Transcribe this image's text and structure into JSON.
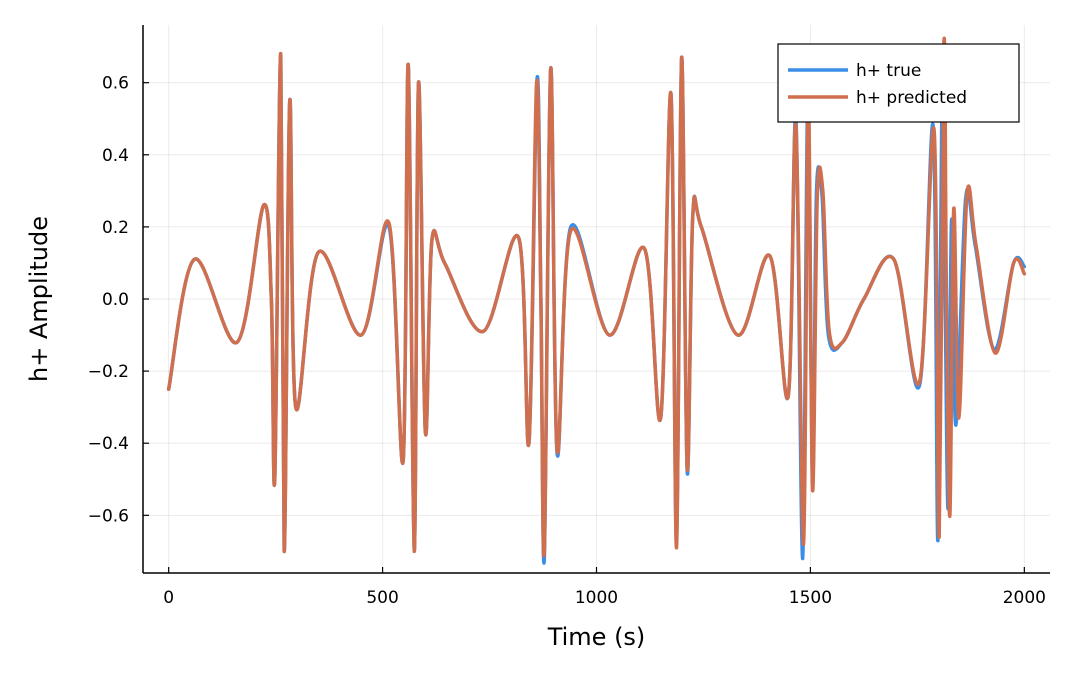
{
  "chart_data": {
    "type": "line",
    "title": "",
    "xlabel": "Time (s)",
    "ylabel": "h+ Amplitude",
    "xlim": [
      -60,
      2060
    ],
    "ylim": [
      -0.76,
      0.76
    ],
    "xticks": [
      0,
      500,
      1000,
      1500,
      2000
    ],
    "xtick_labels": [
      "0",
      "500",
      "1000",
      "1500",
      "2000"
    ],
    "yticks": [
      -0.6,
      -0.4,
      -0.2,
      0.0,
      0.2,
      0.4,
      0.6
    ],
    "ytick_labels": [
      "−0.6",
      "−0.4",
      "−0.2",
      "0.0",
      "0.2",
      "0.4",
      "0.6"
    ],
    "grid": true,
    "legend_position": "top-right",
    "series": [
      {
        "name": "h+ true",
        "color": "#3b8ee8",
        "x": [
          0,
          60,
          160,
          222,
          240,
          248,
          262,
          270,
          283,
          297,
          350,
          450,
          515,
          548,
          560,
          574,
          584,
          600,
          615,
          645,
          735,
          818,
          842,
          861,
          870,
          878,
          893,
          908,
          940,
          1030,
          1112,
          1150,
          1174,
          1187,
          1199,
          1212,
          1225,
          1245,
          1330,
          1405,
          1448,
          1466,
          1482,
          1494,
          1505,
          1514,
          1527,
          1542,
          1575,
          1625,
          1695,
          1755,
          1787,
          1798,
          1808,
          1815,
          1822,
          1830,
          1840,
          1863,
          1885,
          1930,
          1975,
          2000
        ],
        "y": [
          -0.25,
          0.11,
          -0.12,
          0.26,
          0.0,
          -0.5,
          0.68,
          -0.7,
          0.55,
          -0.3,
          0.13,
          -0.1,
          0.2,
          -0.45,
          0.65,
          -0.7,
          0.6,
          -0.37,
          0.16,
          0.1,
          -0.09,
          0.17,
          -0.4,
          0.61,
          0.0,
          -0.72,
          0.64,
          -0.43,
          0.2,
          -0.1,
          0.14,
          -0.33,
          0.57,
          -0.68,
          0.67,
          -0.48,
          0.23,
          0.2,
          -0.1,
          0.12,
          -0.27,
          0.5,
          -0.72,
          0.57,
          -0.51,
          0.29,
          0.29,
          -0.1,
          -0.12,
          0.0,
          0.11,
          -0.24,
          0.48,
          -0.67,
          0.65,
          0.0,
          -0.58,
          0.22,
          -0.35,
          0.28,
          0.15,
          -0.14,
          0.1,
          0.09
        ]
      },
      {
        "name": "h+ predicted",
        "color": "#d06f4e",
        "x": [
          0,
          60,
          160,
          222,
          240,
          248,
          262,
          270,
          283,
          297,
          350,
          450,
          515,
          548,
          560,
          574,
          584,
          600,
          615,
          645,
          735,
          818,
          842,
          860,
          870,
          878,
          893,
          908,
          940,
          1030,
          1112,
          1150,
          1174,
          1187,
          1199,
          1212,
          1225,
          1245,
          1330,
          1405,
          1448,
          1466,
          1484,
          1495,
          1505,
          1516,
          1529,
          1544,
          1575,
          1625,
          1695,
          1755,
          1789,
          1801,
          1812,
          1818,
          1826,
          1835,
          1847,
          1866,
          1887,
          1932,
          1975,
          2000
        ],
        "y": [
          -0.25,
          0.11,
          -0.12,
          0.26,
          0.0,
          -0.5,
          0.68,
          -0.7,
          0.55,
          -0.3,
          0.13,
          -0.1,
          0.21,
          -0.45,
          0.65,
          -0.7,
          0.6,
          -0.37,
          0.16,
          0.1,
          -0.09,
          0.17,
          -0.4,
          0.6,
          0.0,
          -0.7,
          0.64,
          -0.42,
          0.19,
          -0.1,
          0.14,
          -0.33,
          0.57,
          -0.69,
          0.67,
          -0.47,
          0.23,
          0.2,
          -0.1,
          0.12,
          -0.27,
          0.48,
          -0.68,
          0.56,
          -0.53,
          0.28,
          0.3,
          -0.09,
          -0.12,
          0.0,
          0.11,
          -0.23,
          0.47,
          -0.66,
          0.71,
          0.0,
          -0.6,
          0.25,
          -0.33,
          0.29,
          0.15,
          -0.15,
          0.1,
          0.07
        ]
      }
    ]
  }
}
